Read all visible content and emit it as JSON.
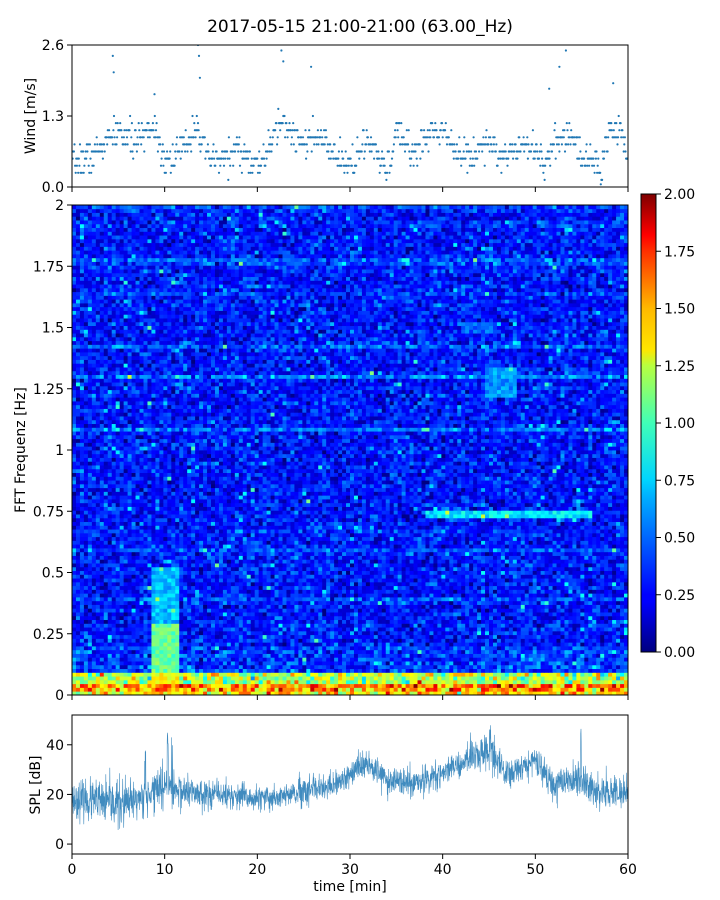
{
  "title": "2017-05-15 21:00-21:00 (63.00_Hz)",
  "chart_data": [
    {
      "name": "wind",
      "type": "scatter",
      "ylabel": "Wind [m/s]",
      "xlim": [
        0,
        60
      ],
      "ylim": [
        0,
        2.6
      ],
      "yticks": [
        0.0,
        1.3,
        2.6
      ],
      "ytick_labels": [
        "0.0",
        "1.3",
        "2.6"
      ],
      "color": "#1f77b4",
      "profile": [
        {
          "t": 0,
          "v": 0.45
        },
        {
          "t": 2,
          "v": 0.55
        },
        {
          "t": 3.5,
          "v": 0.8
        },
        {
          "t": 5,
          "v": 1.0
        },
        {
          "t": 7,
          "v": 0.8
        },
        {
          "t": 8,
          "v": 1.05
        },
        {
          "t": 9,
          "v": 1.1
        },
        {
          "t": 10,
          "v": 0.5
        },
        {
          "t": 11,
          "v": 0.55
        },
        {
          "t": 12,
          "v": 0.7
        },
        {
          "t": 13.5,
          "v": 1.2
        },
        {
          "t": 14.5,
          "v": 0.5
        },
        {
          "t": 16,
          "v": 0.5
        },
        {
          "t": 18,
          "v": 0.7
        },
        {
          "t": 20,
          "v": 0.35
        },
        {
          "t": 21,
          "v": 0.6
        },
        {
          "t": 22.5,
          "v": 1.2
        },
        {
          "t": 24,
          "v": 0.95
        },
        {
          "t": 26,
          "v": 0.85
        },
        {
          "t": 27,
          "v": 0.9
        },
        {
          "t": 28,
          "v": 0.6
        },
        {
          "t": 29.5,
          "v": 0.4
        },
        {
          "t": 31,
          "v": 0.6
        },
        {
          "t": 32,
          "v": 0.85
        },
        {
          "t": 33,
          "v": 0.5
        },
        {
          "t": 34,
          "v": 0.3
        },
        {
          "t": 35,
          "v": 1.0
        },
        {
          "t": 36,
          "v": 0.8
        },
        {
          "t": 37,
          "v": 0.6
        },
        {
          "t": 38.5,
          "v": 1.0
        },
        {
          "t": 40,
          "v": 1.05
        },
        {
          "t": 41,
          "v": 0.9
        },
        {
          "t": 42,
          "v": 0.5
        },
        {
          "t": 43.5,
          "v": 0.65
        },
        {
          "t": 45,
          "v": 0.9
        },
        {
          "t": 46,
          "v": 0.6
        },
        {
          "t": 47,
          "v": 0.55
        },
        {
          "t": 48.5,
          "v": 0.85
        },
        {
          "t": 50,
          "v": 0.7
        },
        {
          "t": 51,
          "v": 0.45
        },
        {
          "t": 52,
          "v": 0.7
        },
        {
          "t": 53,
          "v": 1.0
        },
        {
          "t": 54,
          "v": 0.9
        },
        {
          "t": 55,
          "v": 0.5
        },
        {
          "t": 56,
          "v": 0.6
        },
        {
          "t": 57,
          "v": 0.25
        },
        {
          "t": 58,
          "v": 1.0
        },
        {
          "t": 59,
          "v": 1.1
        },
        {
          "t": 60,
          "v": 0.7
        }
      ],
      "outliers": [
        {
          "t": 4.4,
          "v": 2.4
        },
        {
          "t": 4.5,
          "v": 2.1
        },
        {
          "t": 13.6,
          "v": 2.6
        },
        {
          "t": 13.7,
          "v": 2.4
        },
        {
          "t": 13.8,
          "v": 2.0
        },
        {
          "t": 22.6,
          "v": 2.5
        },
        {
          "t": 22.8,
          "v": 2.3
        },
        {
          "t": 25.8,
          "v": 2.2
        },
        {
          "t": 51.5,
          "v": 1.8
        },
        {
          "t": 52.6,
          "v": 2.2
        },
        {
          "t": 53.3,
          "v": 2.5
        },
        {
          "t": 58.4,
          "v": 1.9
        },
        {
          "t": 8.9,
          "v": 1.7
        }
      ]
    },
    {
      "name": "spectrogram",
      "type": "heatmap",
      "ylabel": "FFT Frequenz [Hz]",
      "xlim": [
        0,
        60
      ],
      "ylim": [
        0,
        2
      ],
      "yticks": [
        0,
        0.25,
        0.5,
        0.75,
        1,
        1.25,
        1.5,
        1.75,
        2
      ],
      "ytick_labels": [
        "0",
        "0.25",
        "0.5",
        "0.75",
        "1",
        "1.25",
        "1.5",
        "1.75",
        "2"
      ],
      "colormap": "jet",
      "colorbar": {
        "vmin": 0,
        "vmax": 2,
        "ticks": [
          0,
          0.25,
          0.5,
          0.75,
          1,
          1.25,
          1.5,
          1.75,
          2
        ],
        "tick_labels": [
          "0.00",
          "0.25",
          "0.50",
          "0.75",
          "1.00",
          "1.25",
          "1.50",
          "1.75",
          "2.00"
        ]
      },
      "features": [
        {
          "t0": 8.5,
          "t1": 11.5,
          "f0": 0.0,
          "f1": 0.52,
          "level": 1.1
        },
        {
          "t0": 44.5,
          "t1": 48.0,
          "f0": 1.22,
          "f1": 1.34,
          "level": 0.95
        },
        {
          "t0": 38.0,
          "t1": 56.0,
          "f0": 0.72,
          "f1": 0.76,
          "level": 1.3
        },
        {
          "t0": 42.0,
          "t1": 46.0,
          "f0": 1.48,
          "f1": 1.52,
          "level": 0.7
        }
      ]
    },
    {
      "name": "spl",
      "type": "line",
      "xlabel": "time [min]",
      "ylabel": "SPL [dB]",
      "xlim": [
        0,
        60
      ],
      "ylim": [
        -4,
        52
      ],
      "xticks": [
        0,
        10,
        20,
        30,
        40,
        50,
        60
      ],
      "xtick_labels": [
        "0",
        "10",
        "20",
        "30",
        "40",
        "50",
        "60"
      ],
      "yticks": [
        0,
        20,
        40
      ],
      "ytick_labels": [
        "0",
        "20",
        "40"
      ],
      "color": "#1f77b4",
      "envelope": [
        {
          "t": 0,
          "mean": 18,
          "spread": 6
        },
        {
          "t": 3,
          "mean": 17,
          "spread": 8
        },
        {
          "t": 6,
          "mean": 16,
          "spread": 9
        },
        {
          "t": 8,
          "mean": 20,
          "spread": 6
        },
        {
          "t": 10,
          "mean": 23,
          "spread": 7
        },
        {
          "t": 12,
          "mean": 21,
          "spread": 6
        },
        {
          "t": 16,
          "mean": 20,
          "spread": 5
        },
        {
          "t": 20,
          "mean": 18,
          "spread": 5
        },
        {
          "t": 24,
          "mean": 20,
          "spread": 5
        },
        {
          "t": 28,
          "mean": 23,
          "spread": 5
        },
        {
          "t": 32,
          "mean": 33,
          "spread": 5
        },
        {
          "t": 34,
          "mean": 26,
          "spread": 5
        },
        {
          "t": 37,
          "mean": 24,
          "spread": 5
        },
        {
          "t": 40,
          "mean": 28,
          "spread": 5
        },
        {
          "t": 43,
          "mean": 35,
          "spread": 6
        },
        {
          "t": 45,
          "mean": 38,
          "spread": 7
        },
        {
          "t": 47,
          "mean": 28,
          "spread": 5
        },
        {
          "t": 50,
          "mean": 34,
          "spread": 5
        },
        {
          "t": 52,
          "mean": 24,
          "spread": 6
        },
        {
          "t": 55,
          "mean": 26,
          "spread": 7
        },
        {
          "t": 57,
          "mean": 20,
          "spread": 6
        },
        {
          "t": 60,
          "mean": 22,
          "spread": 6
        }
      ],
      "spikes": [
        {
          "t": 10.3,
          "v": 46
        },
        {
          "t": 10.8,
          "v": 44
        },
        {
          "t": 45.1,
          "v": 48
        },
        {
          "t": 54.9,
          "v": 47
        },
        {
          "t": 7.9,
          "v": 39
        }
      ]
    }
  ]
}
